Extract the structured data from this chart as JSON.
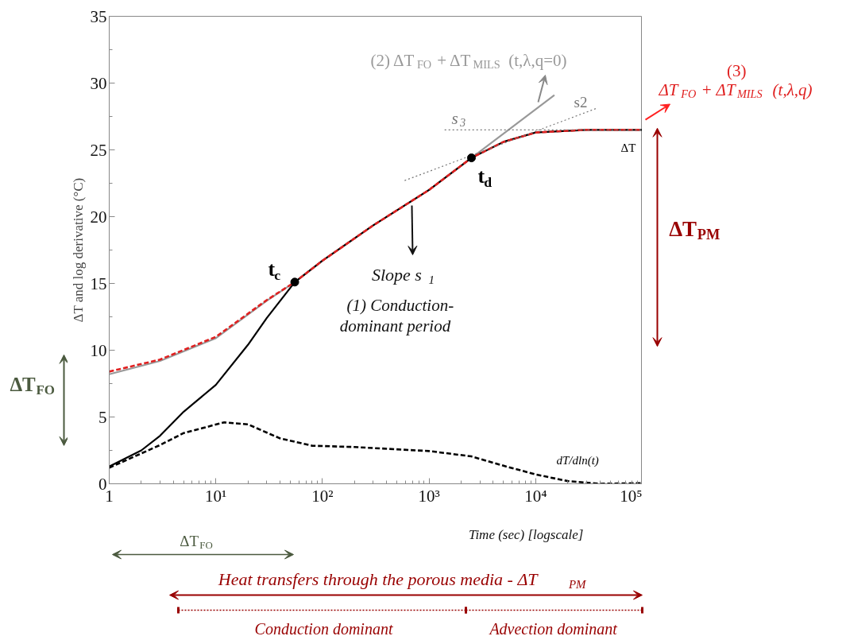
{
  "chart_data": {
    "type": "line",
    "ylabel": "ΔT and log derivative (°C)",
    "xlabel": "Time (sec) [logscale]",
    "log": "x",
    "xlim": [
      1,
      100000
    ],
    "xticks": [
      {
        "value": 1,
        "label": "1"
      },
      {
        "value": 10,
        "label": "10¹"
      },
      {
        "value": 100,
        "label": "10²"
      },
      {
        "value": 1000,
        "label": "10³"
      },
      {
        "value": 10000,
        "label": "10⁴"
      },
      {
        "value": 100000,
        "label": "10⁵"
      }
    ],
    "ylim": [
      0,
      35
    ],
    "yticks": [
      0,
      5,
      10,
      15,
      20,
      25,
      30,
      35
    ],
    "grid": false,
    "series": [
      {
        "name": "(2) ΔT$_{FO}$ + ΔT$_{MILS}$ (t,λ,q=0)",
        "line_style": "solid",
        "color": "#999999",
        "x": [
          1,
          3,
          10,
          30,
          55,
          100,
          300,
          1000,
          2500,
          15000
        ],
        "values": [
          8.2,
          9.2,
          10.9,
          13.7,
          15.1,
          16.7,
          19.35,
          22,
          24.4,
          29.1
        ]
      },
      {
        "name": "ΔT",
        "line_style": "solid",
        "color": "#000000",
        "x": [
          1,
          2,
          3,
          5,
          10,
          20,
          30,
          55,
          100,
          300,
          1000,
          2500,
          5000,
          10000,
          30000,
          100000
        ],
        "values": [
          1.3,
          2.5,
          3.6,
          5.4,
          7.4,
          10.4,
          12.4,
          15.1,
          16.7,
          19.35,
          22,
          24.4,
          25.6,
          26.3,
          26.5,
          26.5
        ]
      },
      {
        "name": "(3) ΔT$_{FO}$ + ΔT$_{MILS}$ (t,λ,q)",
        "line_style": "dashed",
        "color": "#e02020",
        "x": [
          1,
          3,
          10,
          30,
          55,
          100,
          300,
          1000,
          2500,
          5000,
          10000,
          30000,
          100000
        ],
        "values": [
          8.4,
          9.3,
          11,
          13.75,
          15.1,
          16.7,
          19.35,
          22,
          24.4,
          25.6,
          26.3,
          26.5,
          26.5
        ]
      },
      {
        "name": "dT/dln(t)",
        "line_style": "dashed",
        "color": "#000000",
        "x": [
          1,
          3,
          5,
          12,
          20,
          40,
          80,
          200,
          1000,
          2500,
          5000,
          10000,
          20000,
          40000,
          100000
        ],
        "values": [
          1.2,
          2.9,
          3.8,
          4.6,
          4.45,
          3.4,
          2.85,
          2.75,
          2.45,
          2.05,
          1.35,
          0.7,
          0.2,
          0.0,
          0.05
        ]
      },
      {
        "name": "s2",
        "line_style": "dotted",
        "color": "#777777",
        "x": [
          590,
          37000
        ],
        "values": [
          22.7,
          28.1
        ]
      },
      {
        "name": "s$_{3}$",
        "line_style": "dotted",
        "color": "#777777",
        "x": [
          1400,
          100000
        ],
        "values": [
          26.5,
          26.5
        ]
      },
      {
        "name": "t$_{c}$",
        "type": "scatter",
        "marker": "circle",
        "color": "#000000",
        "x": [
          55
        ],
        "values": [
          15.1
        ]
      },
      {
        "name": "t$_{d}$",
        "type": "scatter",
        "marker": "circle",
        "color": "#000000",
        "x": [
          2500
        ],
        "values": [
          24.4
        ]
      }
    ],
    "annotations": [
      "Slope s$_{1}$",
      "(1) Conduction-",
      "dominant period",
      "ΔT$_{PM}$",
      "ΔT$_{FO}$",
      "ΔT$_{FO}$",
      "Heat transfers through the porous media - ΔT$_{PM}$",
      "Conduction  dominant",
      "Advection dominant"
    ]
  }
}
